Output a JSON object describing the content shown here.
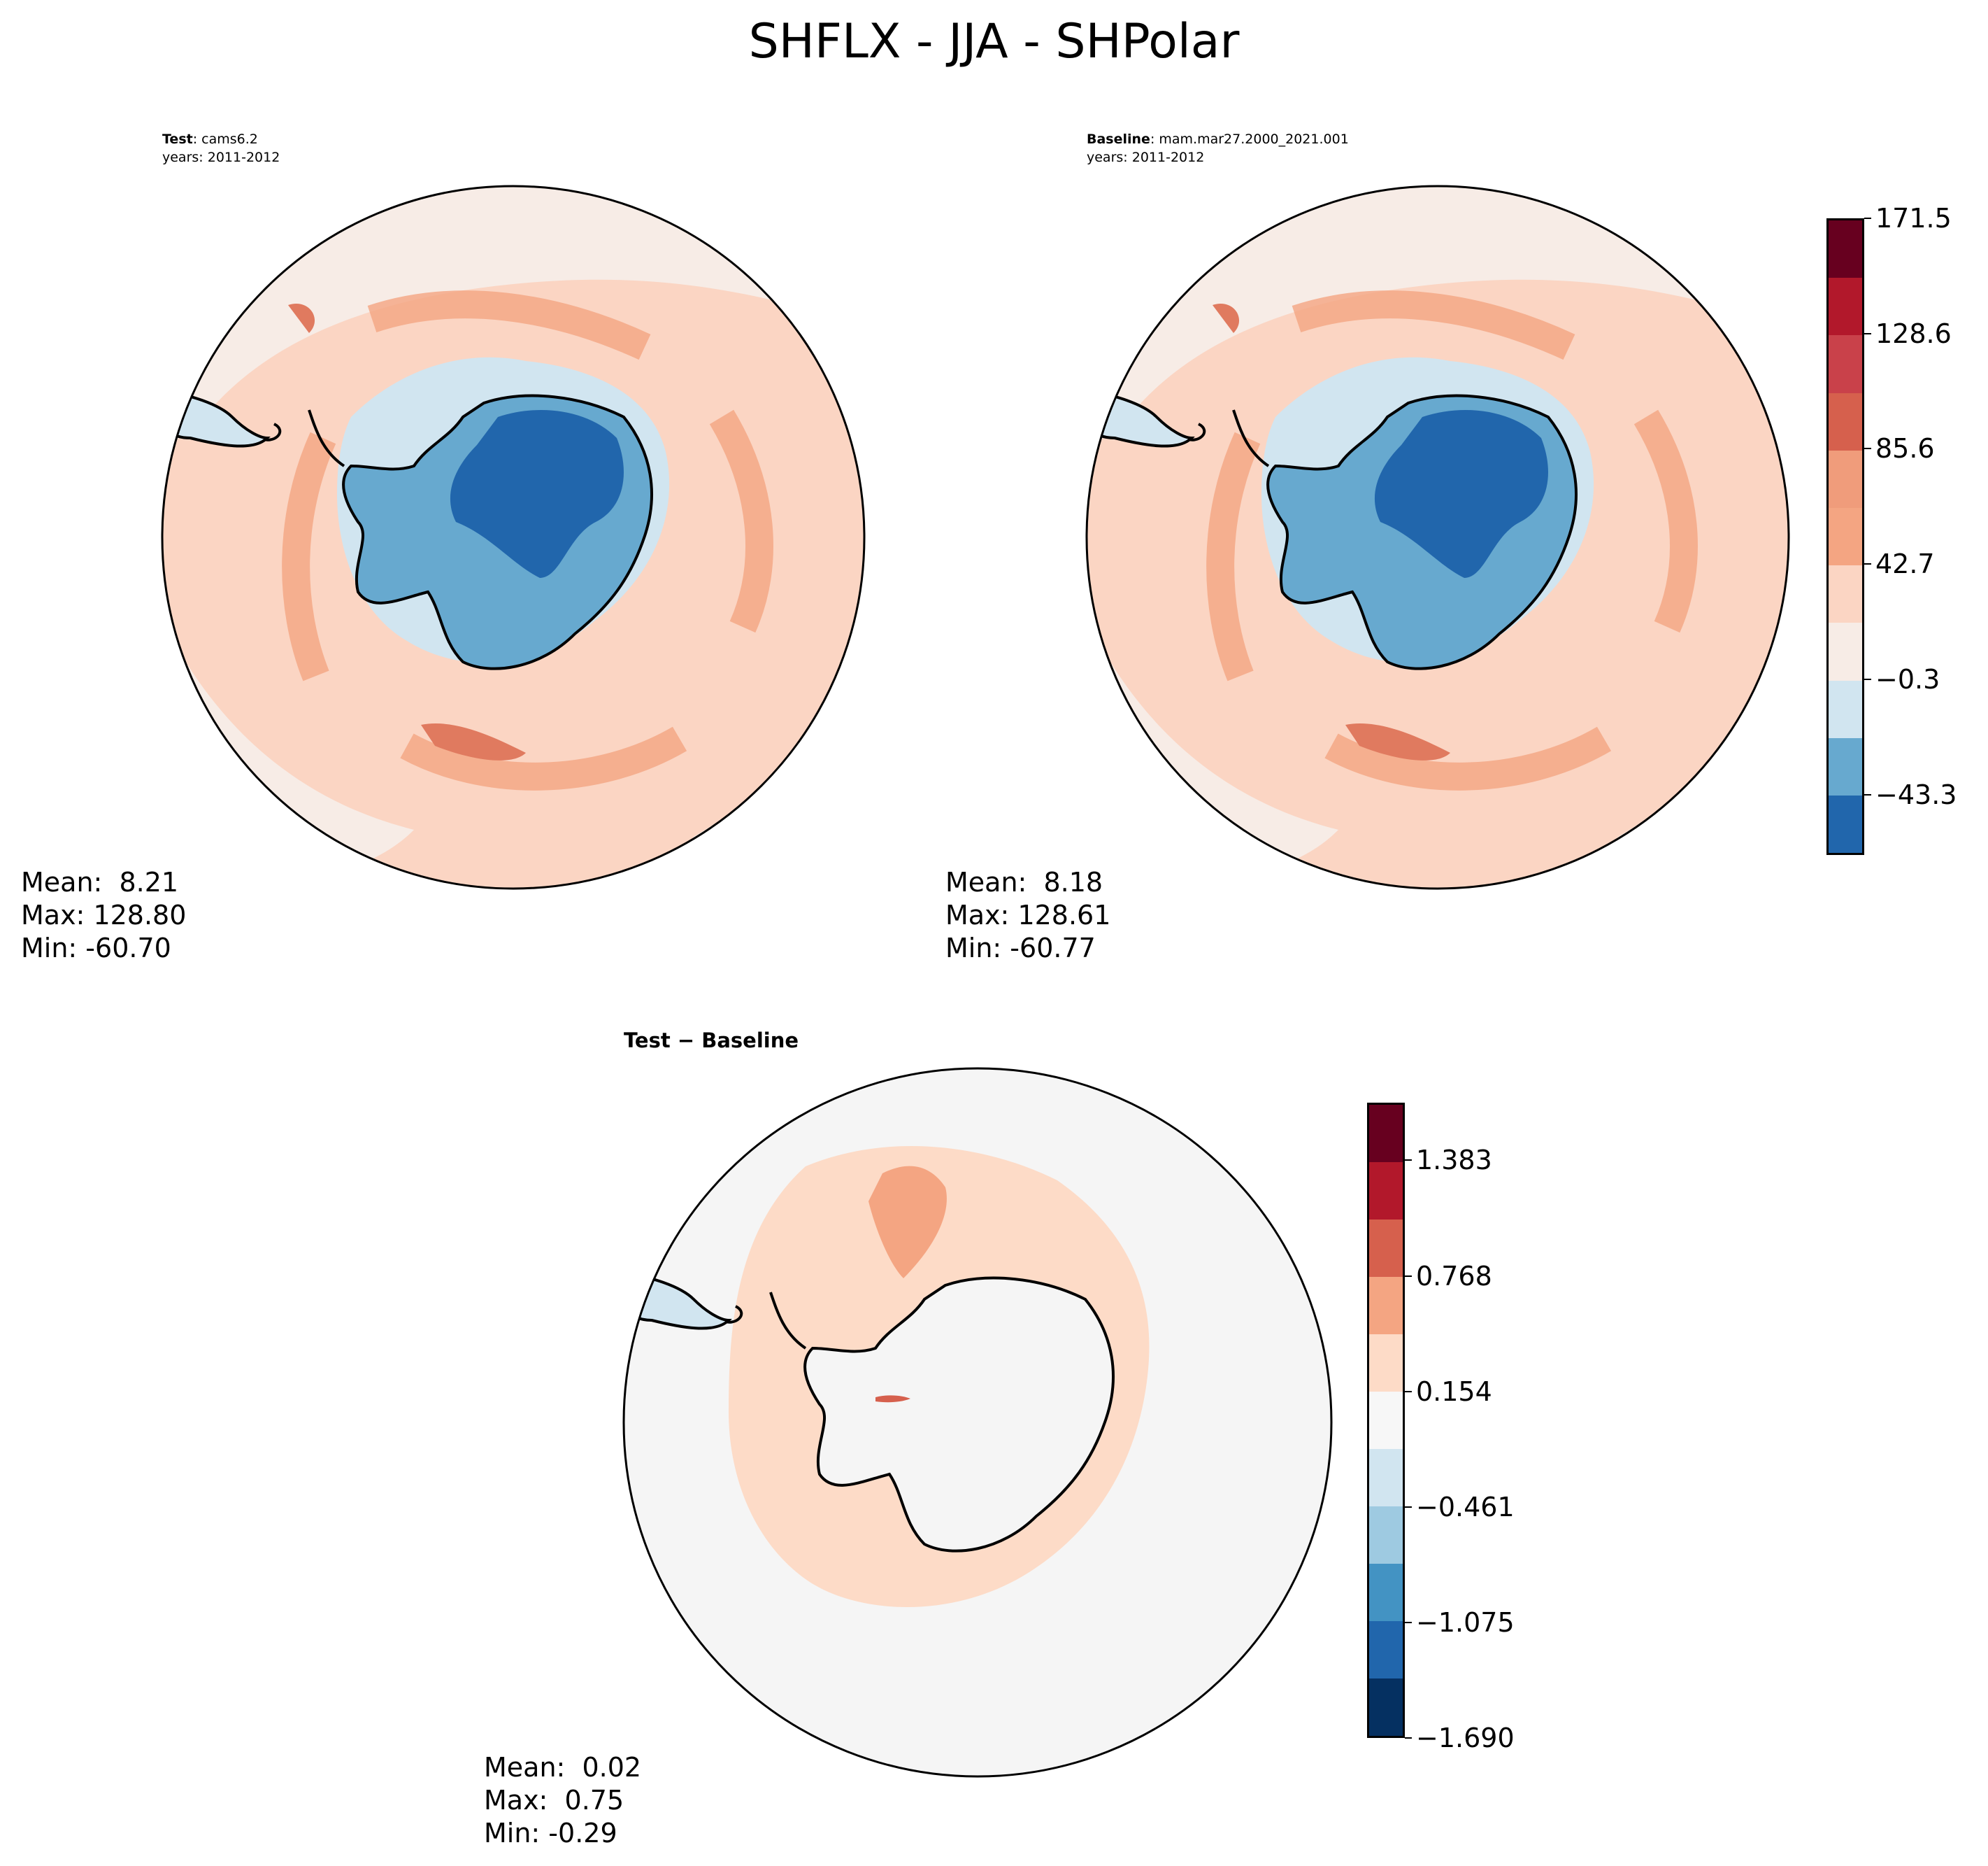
{
  "figure": {
    "title": "SHFLX - JJA - SHPolar"
  },
  "panels": {
    "test": {
      "label": "Test",
      "name": "cams6.2",
      "years": "years: 2011-2012",
      "stats": {
        "mean": "Mean:  8.21",
        "max": "Max: 128.80",
        "min": "Min: -60.70"
      }
    },
    "baseline": {
      "label": "Baseline",
      "name": "mam.mar27.2000_2021.001",
      "years": "years: 2011-2012",
      "stats": {
        "mean": "Mean:  8.18",
        "max": "Max: 128.61",
        "min": "Min: -60.77"
      }
    },
    "diff": {
      "title": "Test − Baseline",
      "stats": {
        "mean": "Mean:  0.02",
        "max": "Max:  0.75",
        "min": "Min: -0.29"
      }
    }
  },
  "colorbars": {
    "main": {
      "ticks": [
        "171.5",
        "128.6",
        "85.6",
        "42.7",
        "−0.3",
        "−43.3"
      ],
      "colors": [
        "#67001f",
        "#b2182b",
        "#c9414a",
        "#d6604d",
        "#f09c7b",
        "#f4a582",
        "#fbd5c3",
        "#f7ece6",
        "#d1e5f0",
        "#67a9cf",
        "#2166ac"
      ]
    },
    "diff": {
      "ticks": [
        "1.383",
        "0.768",
        "0.154",
        "−0.461",
        "−1.075",
        "−1.690"
      ],
      "colors": [
        "#67001f",
        "#b2182b",
        "#d6604d",
        "#f4a582",
        "#fddbc7",
        "#f7f7f7",
        "#d1e5f0",
        "#9ecae1",
        "#4393c3",
        "#2166ac",
        "#053061"
      ]
    }
  },
  "map_colors": {
    "ocean_light": "#f7ece6",
    "ocean_mid": "#fbd5c3",
    "ocean_warm": "#f4a582",
    "ocean_hot": "#e07a5f",
    "ice": "#d1e5f0",
    "land_mid": "#67a9cf",
    "land_dark": "#2166ac",
    "diff_bg": "#f5f5f5",
    "diff_pos": "#fddbc7",
    "diff_pos2": "#f4a582"
  }
}
